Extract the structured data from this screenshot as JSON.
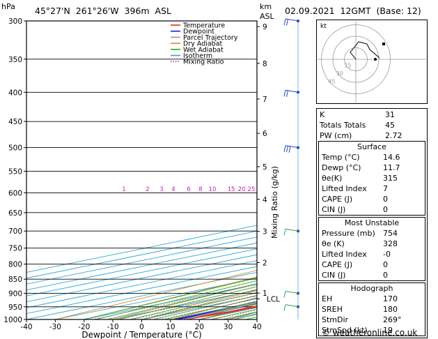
{
  "header": {
    "pressure_unit": "hPa",
    "location": "45°27'N  261°26'W  396m  ASL",
    "alt_unit": "km",
    "alt_ref": "ASL",
    "datetime": "02.09.2021  12GMT  (Base: 12)"
  },
  "footer": {
    "copyright": "© weatheronline.co.uk"
  },
  "chart_data": {
    "type": "line",
    "title": "",
    "xlabel": "Dewpoint / Temperature (°C)",
    "ylabel": "hPa",
    "x_ticks": [
      -40,
      -30,
      -20,
      -10,
      0,
      10,
      20,
      30,
      40
    ],
    "xlim": [
      -40,
      40
    ],
    "p_levels": [
      300,
      350,
      400,
      450,
      500,
      550,
      600,
      650,
      700,
      750,
      800,
      850,
      900,
      950,
      1000
    ],
    "ylim": [
      300,
      1000
    ],
    "y_scale": "log",
    "skew": "skew-T",
    "grid": true,
    "legend_position": "top-left",
    "legend": [
      {
        "name": "Temperature",
        "color": "#e8281e"
      },
      {
        "name": "Dewpoint",
        "color": "#1a22d0"
      },
      {
        "name": "Parcel Trajectory",
        "color": "#9a9a9a"
      },
      {
        "name": "Dry Adiabat",
        "color": "#d98a1a"
      },
      {
        "name": "Wet Adiabat",
        "color": "#2aa82a"
      },
      {
        "name": "Isotherm",
        "color": "#29a6d6"
      },
      {
        "name": "Mixing Ratio",
        "color": "#d01aa8"
      }
    ],
    "km_axis": {
      "label": "km",
      "sub": "ASL",
      "ticks": [
        {
          "km": "9",
          "p": 307
        },
        {
          "km": "8",
          "p": 356
        },
        {
          "km": "7",
          "p": 411
        },
        {
          "km": "6",
          "p": 472
        },
        {
          "km": "5",
          "p": 540
        },
        {
          "km": "4",
          "p": 616
        },
        {
          "km": "3",
          "p": 701
        },
        {
          "km": "2",
          "p": 795
        },
        {
          "km": "1",
          "p": 899
        }
      ]
    },
    "lcl": {
      "label": "LCL",
      "p": 920
    },
    "mixing_ratio_label": "Mixing Ratio (g/kg)",
    "mixing_ratios": [
      "1",
      "2",
      "3",
      "4",
      "6",
      "8",
      "10",
      "15",
      "20",
      "25"
    ],
    "series": [
      {
        "name": "Temperature",
        "color": "#e8281e",
        "points": [
          [
            1000,
            14.6
          ],
          [
            970,
            17.4
          ],
          [
            940,
            18.5
          ],
          [
            920,
            17.6
          ],
          [
            895,
            17.0
          ],
          [
            870,
            17.5
          ],
          [
            850,
            18.4
          ],
          [
            820,
            20.2
          ],
          [
            800,
            19.8
          ],
          [
            780,
            18.2
          ],
          [
            750,
            15.2
          ],
          [
            700,
            10.8
          ],
          [
            650,
            6.6
          ],
          [
            600,
            2.6
          ],
          [
            560,
            -0.8
          ],
          [
            520,
            -4.8
          ],
          [
            500,
            -7.6
          ],
          [
            480,
            -7.8
          ],
          [
            450,
            -10.8
          ],
          [
            400,
            -17.4
          ],
          [
            370,
            -21.2
          ],
          [
            350,
            -24.6
          ],
          [
            320,
            -28.9
          ],
          [
            300,
            -32.2
          ]
        ]
      },
      {
        "name": "Dewpoint",
        "color": "#1a22d0",
        "points": [
          [
            1000,
            11.7
          ],
          [
            960,
            12.4
          ],
          [
            940,
            12.0
          ],
          [
            920,
            11.5
          ],
          [
            880,
            11.1
          ],
          [
            850,
            10.1
          ],
          [
            835,
            -1.0
          ],
          [
            815,
            0.5
          ],
          [
            800,
            8.0
          ],
          [
            780,
            9.0
          ],
          [
            760,
            9.8
          ],
          [
            740,
            7.9
          ],
          [
            720,
            6.7
          ],
          [
            700,
            5.7
          ],
          [
            680,
            4.5
          ],
          [
            660,
            4.0
          ],
          [
            640,
            -0.5
          ],
          [
            620,
            -4.0
          ],
          [
            600,
            -6.0
          ],
          [
            560,
            -8.0
          ],
          [
            540,
            -10.0
          ],
          [
            510,
            -13.0
          ],
          [
            500,
            -17.0
          ],
          [
            490,
            -22.5
          ],
          [
            480,
            -22.0
          ],
          [
            465,
            -20.5
          ],
          [
            450,
            -26.0
          ],
          [
            430,
            -39.0
          ],
          [
            400,
            -37.0
          ],
          [
            380,
            -40.0
          ],
          [
            360,
            -44.0
          ],
          [
            345,
            -49.0
          ],
          [
            330,
            -49.5
          ],
          [
            315,
            -50.5
          ],
          [
            300,
            -50.0
          ]
        ]
      },
      {
        "name": "Parcel Trajectory",
        "color": "#9a9a9a",
        "points": [
          [
            1000,
            14.6
          ],
          [
            920,
            10.9
          ],
          [
            900,
            9.8
          ],
          [
            850,
            7.3
          ],
          [
            800,
            4.6
          ],
          [
            750,
            1.6
          ],
          [
            700,
            -1.6
          ],
          [
            650,
            -5.0
          ],
          [
            600,
            -8.9
          ],
          [
            550,
            -13.3
          ],
          [
            500,
            -18.4
          ],
          [
            450,
            -24.3
          ],
          [
            400,
            -31.3
          ],
          [
            350,
            -39.7
          ],
          [
            300,
            -49.5
          ]
        ]
      }
    ],
    "wind_barbs": [
      {
        "p": 300,
        "speed_kt": 20
      },
      {
        "p": 400,
        "speed_kt": 20
      },
      {
        "p": 500,
        "speed_kt": 25
      },
      {
        "p": 700,
        "speed_kt": 10
      },
      {
        "p": 900,
        "speed_kt": 5
      },
      {
        "p": 950,
        "speed_kt": 5
      }
    ]
  },
  "hodograph": {
    "label": "kt",
    "ring_labels": [
      "15",
      "30",
      "45"
    ],
    "points": [
      [
        0,
        0
      ],
      [
        3,
        8
      ],
      [
        10,
        14
      ],
      [
        12,
        20
      ],
      [
        10,
        26
      ],
      [
        -2,
        36
      ]
    ]
  },
  "indices": {
    "rows": [
      {
        "label": "K",
        "value": "31"
      },
      {
        "label": "Totals Totals",
        "value": "45"
      },
      {
        "label": "PW (cm)",
        "value": "2.72"
      }
    ]
  },
  "surface": {
    "title": "Surface",
    "rows": [
      {
        "label": "Temp (°C)",
        "value": "14.6"
      },
      {
        "label": "Dewp (°C)",
        "value": "11.7"
      },
      {
        "label": "θe(K)",
        "value": "315"
      },
      {
        "label": "Lifted Index",
        "value": "7"
      },
      {
        "label": "CAPE (J)",
        "value": "0"
      },
      {
        "label": "CIN (J)",
        "value": "0"
      }
    ]
  },
  "most_unstable": {
    "title": "Most Unstable",
    "rows": [
      {
        "label": "Pressure (mb)",
        "value": "754"
      },
      {
        "label": "θe (K)",
        "value": "328"
      },
      {
        "label": "Lifted Index",
        "value": "-0"
      },
      {
        "label": "CAPE (J)",
        "value": "0"
      },
      {
        "label": "CIN (J)",
        "value": "0"
      }
    ]
  },
  "hodograph_table": {
    "title": "Hodograph",
    "rows": [
      {
        "label": "EH",
        "value": "170"
      },
      {
        "label": "SREH",
        "value": "180"
      },
      {
        "label": "StmDir",
        "value": "269°"
      },
      {
        "label": "StmSpd (kt)",
        "value": "19"
      }
    ]
  }
}
